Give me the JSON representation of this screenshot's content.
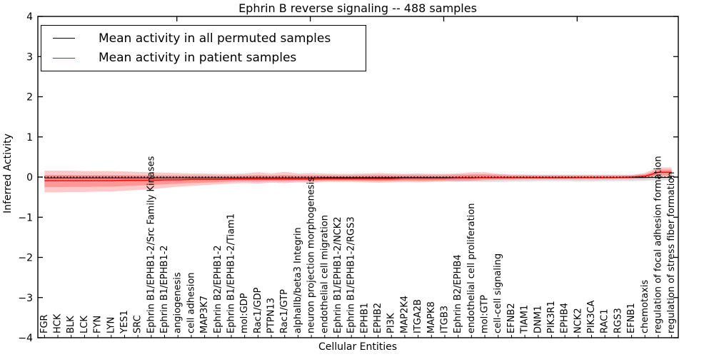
{
  "figure": {
    "title": "Ephrin B reverse signaling -- 488 samples",
    "xlabel": "Cellular Entities",
    "ylabel": "Inferred Activity",
    "legend": [
      {
        "label": "Mean activity in all permuted samples",
        "color": "#000000"
      },
      {
        "label": "Mean activity in patient samples",
        "color": "#ff0000"
      }
    ]
  },
  "chart_data": {
    "type": "line",
    "title": "Ephrin B reverse signaling -- 488 samples",
    "xlabel": "Cellular Entities",
    "ylabel": "Inferred Activity",
    "ylim": [
      -4,
      4
    ],
    "yticks": [
      -4,
      -3,
      -2,
      -1,
      0,
      1,
      2,
      3,
      4
    ],
    "grid": false,
    "legend_position": "upper left",
    "categories": [
      "FGR",
      "HCK",
      "BLK",
      "LCK",
      "FYN",
      "LYN",
      "YES1",
      "SRC",
      "Ephrin B1/EPHB1-2/Src Family Kinases",
      "Ephrin B1/EPHB1-2",
      "angiogenesis",
      "cell adhesion",
      "MAP3K7",
      "Ephrin B2/EPHB1-2",
      "Ephrin B1/EPHB1-2/Tiam1",
      "mol:GDP",
      "Rac1/GDP",
      "PTPN13",
      "Rac1/GTP",
      "alphaIIb/beta3 Integrin",
      "neuron projection morphogenesis",
      "endothelial cell migration",
      "Ephrin B1/EPHB1-2/NCK2",
      "Ephrin B1/EPHB1-2/RGS3",
      "EPHB1",
      "EPHB2",
      "PI3K",
      "MAP2K4",
      "ITGA2B",
      "MAPK8",
      "ITGB3",
      "Ephrin B2/EPHB4",
      "endothelial cell proliferation",
      "mol:GTP",
      "cell-cell signaling",
      "EFNB2",
      "TIAM1",
      "DNM1",
      "PIK3R1",
      "EPHB4",
      "NCK2",
      "PIK3CA",
      "RAC1",
      "RGS3",
      "EFNB1",
      "chemotaxis",
      "regulation of focal adhesion formation",
      "regulation of stress fiber formation"
    ],
    "zero_line": {
      "value": 0,
      "style": "dotted",
      "color": "#000000"
    },
    "series": [
      {
        "name": "Mean activity in all permuted samples",
        "color": "#000000",
        "values": [
          -0.02,
          -0.02,
          -0.02,
          -0.02,
          -0.02,
          -0.02,
          -0.02,
          -0.02,
          -0.02,
          -0.02,
          -0.02,
          -0.02,
          -0.02,
          -0.02,
          -0.02,
          -0.02,
          -0.02,
          -0.02,
          -0.02,
          -0.02,
          -0.02,
          -0.015,
          -0.015,
          -0.015,
          -0.015,
          -0.015,
          -0.015,
          -0.015,
          -0.015,
          -0.015,
          -0.015,
          -0.015,
          -0.015,
          -0.015,
          -0.015,
          -0.015,
          -0.015,
          -0.015,
          -0.015,
          -0.015,
          -0.01,
          -0.01,
          -0.01,
          -0.01,
          -0.01,
          -0.01,
          -0.01,
          -0.01
        ]
      },
      {
        "name": "Mean activity in patient samples",
        "color": "#ff0000",
        "values": [
          -0.09,
          -0.09,
          -0.09,
          -0.09,
          -0.09,
          -0.09,
          -0.08,
          -0.08,
          -0.08,
          -0.07,
          -0.07,
          -0.06,
          -0.06,
          -0.06,
          -0.05,
          -0.05,
          -0.05,
          -0.05,
          -0.05,
          -0.05,
          -0.05,
          -0.04,
          -0.04,
          -0.04,
          -0.04,
          -0.04,
          -0.04,
          -0.03,
          -0.03,
          -0.03,
          -0.03,
          -0.02,
          -0.02,
          -0.01,
          -0.01,
          -0.01,
          -0.01,
          -0.01,
          -0.01,
          -0.01,
          -0.01,
          -0.01,
          -0.01,
          -0.01,
          0.0,
          0.02,
          0.12,
          0.12
        ]
      }
    ],
    "bands": [
      {
        "name": "permuted samples spread",
        "color": "#999999",
        "opacity": 0.3,
        "upper": [
          0.05,
          0.05,
          0.05,
          0.05,
          0.05,
          0.05,
          0.05,
          0.05,
          0.05,
          0.05,
          0.05,
          0.05,
          0.05,
          0.05,
          0.05,
          0.05,
          0.05,
          0.05,
          0.05,
          0.05,
          0.05,
          0.05,
          0.05,
          0.05,
          0.06,
          0.06,
          0.06,
          0.06,
          0.06,
          0.06,
          0.06,
          0.07,
          0.07,
          0.07,
          0.07,
          0.06,
          0.06,
          0.06,
          0.06,
          0.06,
          0.06,
          0.06,
          0.06,
          0.06,
          0.06,
          0.07,
          0.08,
          0.08
        ],
        "lower": [
          -0.08,
          -0.08,
          -0.08,
          -0.08,
          -0.08,
          -0.08,
          -0.08,
          -0.08,
          -0.08,
          -0.08,
          -0.07,
          -0.07,
          -0.07,
          -0.07,
          -0.07,
          -0.07,
          -0.07,
          -0.07,
          -0.07,
          -0.07,
          -0.07,
          -0.08,
          -0.08,
          -0.08,
          -0.09,
          -0.09,
          -0.09,
          -0.09,
          -0.1,
          -0.1,
          -0.1,
          -0.11,
          -0.11,
          -0.12,
          -0.12,
          -0.11,
          -0.11,
          -0.1,
          -0.1,
          -0.1,
          -0.11,
          -0.11,
          -0.1,
          -0.1,
          -0.1,
          -0.09,
          -0.08,
          -0.08
        ]
      },
      {
        "name": "patient samples spread",
        "color": "#ff4d4d",
        "opacity": 0.3,
        "inner_scale": 0.55,
        "mean_series": 1,
        "upper": [
          0.16,
          0.16,
          0.16,
          0.15,
          0.15,
          0.15,
          0.14,
          0.13,
          0.12,
          0.11,
          0.1,
          0.09,
          0.09,
          0.08,
          0.08,
          0.09,
          0.12,
          0.09,
          0.13,
          0.09,
          0.1,
          0.09,
          0.08,
          0.08,
          0.09,
          0.1,
          0.09,
          0.08,
          0.09,
          0.08,
          0.08,
          0.09,
          0.12,
          0.12,
          0.08,
          0.06,
          0.06,
          0.05,
          0.05,
          0.05,
          0.05,
          0.05,
          0.05,
          0.05,
          0.05,
          0.1,
          0.24,
          0.24
        ],
        "lower": [
          -0.38,
          -0.38,
          -0.37,
          -0.37,
          -0.36,
          -0.36,
          -0.34,
          -0.32,
          -0.3,
          -0.27,
          -0.24,
          -0.22,
          -0.2,
          -0.18,
          -0.16,
          -0.15,
          -0.16,
          -0.14,
          -0.15,
          -0.13,
          -0.14,
          -0.12,
          -0.12,
          -0.12,
          -0.13,
          -0.14,
          -0.13,
          -0.12,
          -0.13,
          -0.12,
          -0.11,
          -0.11,
          -0.1,
          -0.08,
          -0.07,
          -0.07,
          -0.06,
          -0.06,
          -0.06,
          -0.06,
          -0.06,
          -0.06,
          -0.06,
          -0.05,
          -0.05,
          -0.04,
          0.01,
          0.01
        ]
      }
    ]
  }
}
